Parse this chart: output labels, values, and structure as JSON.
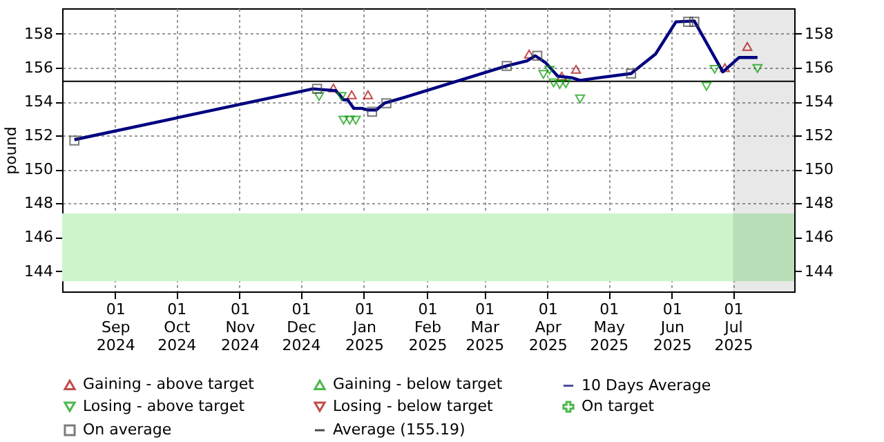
{
  "chart_data": {
    "type": "line",
    "ylabel": "pound",
    "xlim": [
      "2024-08-06",
      "2025-07-31"
    ],
    "xticks": [
      {
        "value": "2024-09-01",
        "label": "01\nSep\n2024"
      },
      {
        "value": "2024-10-01",
        "label": "01\nOct\n2024"
      },
      {
        "value": "2024-11-01",
        "label": "01\nNov\n2024"
      },
      {
        "value": "2024-12-01",
        "label": "01\nDec\n2024"
      },
      {
        "value": "2025-01-01",
        "label": "01\nJan\n2025"
      },
      {
        "value": "2025-02-01",
        "label": "01\nFeb\n2025"
      },
      {
        "value": "2025-03-01",
        "label": "01\nMar\n2025"
      },
      {
        "value": "2025-04-01",
        "label": "01\nApr\n2025"
      },
      {
        "value": "2025-05-01",
        "label": "01\nMay\n2025"
      },
      {
        "value": "2025-06-01",
        "label": "01\nJun\n2025"
      },
      {
        "value": "2025-07-01",
        "label": "01\nJul\n2025"
      }
    ],
    "ylim": [
      142.8,
      159.5
    ],
    "yticks": [
      144,
      146,
      148,
      150,
      152,
      154,
      156,
      158
    ],
    "y2lim": [
      142.8,
      159.5
    ],
    "y2ticks": [
      144,
      146,
      148,
      150,
      152,
      154,
      156,
      158
    ],
    "grid": true,
    "legend": "bottom",
    "series": [
      {
        "name": "Gaining - above target",
        "type": "scatter",
        "marker": "triangle",
        "color": "#aa0000",
        "x": [
          "2024-12-17",
          "2024-12-26",
          "2025-01-03",
          "2025-03-23",
          "2025-04-08",
          "2025-04-15",
          "2025-06-27",
          "2025-07-08"
        ],
        "values": [
          154.8,
          154.4,
          154.4,
          156.8,
          155.5,
          155.9,
          156.0,
          157.25
        ]
      },
      {
        "name": "Gaining - below target",
        "type": "scatter",
        "marker": "triangle",
        "color": "#009900"
      },
      {
        "name": "10 Days Average",
        "type": "line",
        "marker": "none",
        "line_style": "solid",
        "color": "#000080",
        "x": [
          "2024-08-12",
          "2024-12-07",
          "2024-12-12",
          "2024-12-18",
          "2024-12-20",
          "2024-12-22",
          "2024-12-24",
          "2024-12-27",
          "2024-12-31",
          "2025-01-03",
          "2025-01-07",
          "2025-01-11",
          "2025-01-21",
          "2025-03-12",
          "2025-03-22",
          "2025-03-26",
          "2025-03-31",
          "2025-04-03",
          "2025-04-06",
          "2025-04-13",
          "2025-04-17",
          "2025-04-26",
          "2025-05-12",
          "2025-05-14",
          "2025-05-24",
          "2025-06-03",
          "2025-06-12",
          "2025-06-26",
          "2025-07-04",
          "2025-07-13"
        ],
        "values": [
          151.75,
          154.75,
          154.7,
          154.65,
          154.4,
          154.1,
          154.1,
          153.6,
          153.6,
          153.5,
          153.5,
          153.9,
          154.25,
          156.1,
          156.4,
          156.7,
          156.3,
          155.9,
          155.5,
          155.4,
          155.25,
          155.4,
          155.65,
          155.85,
          156.8,
          158.7,
          158.75,
          155.75,
          156.6,
          156.6
        ]
      },
      {
        "name": "Losing - above target",
        "type": "scatter",
        "marker": "triangle-down",
        "color": "#009900",
        "x": [
          "2024-12-10",
          "2024-12-21",
          "2024-12-22",
          "2024-12-25",
          "2024-12-28",
          "2025-03-30",
          "2025-04-02",
          "2025-04-04",
          "2025-04-07",
          "2025-04-10",
          "2025-04-17",
          "2025-06-18",
          "2025-06-22",
          "2025-07-13"
        ],
        "values": [
          154.3,
          154.3,
          152.9,
          152.9,
          152.9,
          155.6,
          155.85,
          155.1,
          155.0,
          155.05,
          154.15,
          154.9,
          155.9,
          155.95
        ]
      },
      {
        "name": "Losing - below target",
        "type": "scatter",
        "marker": "triangle-down",
        "color": "#aa0000"
      },
      {
        "name": "On target",
        "type": "scatter",
        "marker": "cross",
        "color": "#009900"
      },
      {
        "name": "On average",
        "type": "scatter",
        "marker": "square",
        "color": "#444444",
        "x": [
          "2024-08-12",
          "2024-12-09",
          "2025-01-05",
          "2025-01-12",
          "2025-03-12",
          "2025-03-27",
          "2025-05-12",
          "2025-06-09",
          "2025-06-12"
        ],
        "values": [
          151.7,
          154.75,
          153.4,
          153.9,
          156.1,
          156.7,
          155.65,
          158.7,
          158.7
        ]
      }
    ],
    "ref_lines": [
      {
        "axis": "y",
        "value": 155.19,
        "label": "Average (155.19)",
        "color": "#000000",
        "line_style": "solid"
      }
    ],
    "bands": [
      {
        "axis": "y",
        "from": 143.4,
        "to": 147.4,
        "color": "#ccf5cc"
      },
      {
        "axis": "x",
        "from": "2025-07-01",
        "to": "2025-07-31",
        "color": "#e8e8e8"
      }
    ]
  }
}
